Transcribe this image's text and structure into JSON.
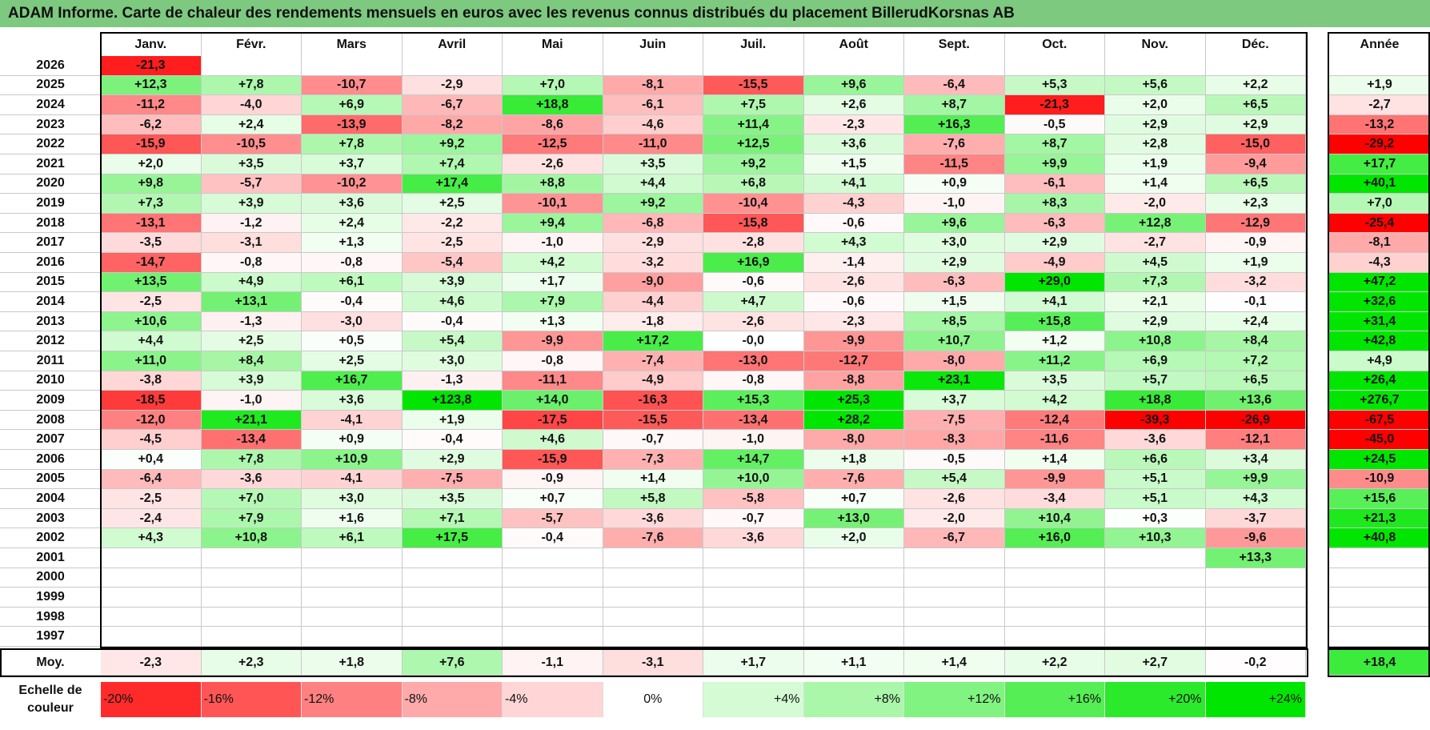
{
  "title": "ADAM Informe. Carte de chaleur des rendements mensuels en euros avec les revenus connus distribués du placement BillerudKorsnas AB",
  "months": [
    "Janv.",
    "Févr.",
    "Mars",
    "Avril",
    "Mai",
    "Juin",
    "Juil.",
    "Août",
    "Sept.",
    "Oct.",
    "Nov.",
    "Déc."
  ],
  "year_header": "Année",
  "avg_label": "Moy.",
  "scale_label_line1": "Echelle de",
  "scale_label_line2": "couleur",
  "colors": {
    "title_bg": "#7dc97f",
    "negative": "#ff0000",
    "positive": "#00e600",
    "neutral": "#ffffff"
  },
  "chart_data": {
    "type": "heatmap",
    "title": "ADAM Informe. Carte de chaleur des rendements mensuels en euros avec les revenus connus distribués du placement BillerudKorsnas AB",
    "unit": "%",
    "rows": [
      {
        "year": "2026",
        "months": [
          "-21,3",
          "",
          "",
          "",
          "",
          "",
          "",
          "",
          "",
          "",
          "",
          ""
        ],
        "annual": ""
      },
      {
        "year": "2025",
        "months": [
          "+12,3",
          "+7,8",
          "-10,7",
          "-2,9",
          "+7,0",
          "-8,1",
          "-15,5",
          "+9,6",
          "-6,4",
          "+5,3",
          "+5,6",
          "+2,2"
        ],
        "annual": "+1,9"
      },
      {
        "year": "2024",
        "months": [
          "-11,2",
          "-4,0",
          "+6,9",
          "-6,7",
          "+18,8",
          "-6,1",
          "+7,5",
          "+2,6",
          "+8,7",
          "-21,3",
          "+2,0",
          "+6,5"
        ],
        "annual": "-2,7"
      },
      {
        "year": "2023",
        "months": [
          "-6,2",
          "+2,4",
          "-13,9",
          "-8,2",
          "-8,6",
          "-4,6",
          "+11,4",
          "-2,3",
          "+16,3",
          "-0,5",
          "+2,9",
          "+2,9"
        ],
        "annual": "-13,2"
      },
      {
        "year": "2022",
        "months": [
          "-15,9",
          "-10,5",
          "+7,8",
          "+9,2",
          "-12,5",
          "-11,0",
          "+12,5",
          "+3,6",
          "-7,6",
          "+8,7",
          "+2,8",
          "-15,0"
        ],
        "annual": "-29,2"
      },
      {
        "year": "2021",
        "months": [
          "+2,0",
          "+3,5",
          "+3,7",
          "+7,4",
          "-2,6",
          "+3,5",
          "+9,2",
          "+1,5",
          "-11,5",
          "+9,9",
          "+1,9",
          "-9,4"
        ],
        "annual": "+17,7"
      },
      {
        "year": "2020",
        "months": [
          "+9,8",
          "-5,7",
          "-10,2",
          "+17,4",
          "+8,8",
          "+4,4",
          "+6,8",
          "+4,1",
          "+0,9",
          "-6,1",
          "+1,4",
          "+6,5"
        ],
        "annual": "+40,1"
      },
      {
        "year": "2019",
        "months": [
          "+7,3",
          "+3,9",
          "+3,6",
          "+2,5",
          "-10,1",
          "+9,2",
          "-10,4",
          "-4,3",
          "-1,0",
          "+8,3",
          "-2,0",
          "+2,3"
        ],
        "annual": "+7,0"
      },
      {
        "year": "2018",
        "months": [
          "-13,1",
          "-1,2",
          "+2,4",
          "-2,2",
          "+9,4",
          "-6,8",
          "-15,8",
          "-0,6",
          "+9,6",
          "-6,3",
          "+12,8",
          "-12,9"
        ],
        "annual": "-25,4"
      },
      {
        "year": "2017",
        "months": [
          "-3,5",
          "-3,1",
          "+1,3",
          "-2,5",
          "-1,0",
          "-2,9",
          "-2,8",
          "+4,3",
          "+3,0",
          "+2,9",
          "-2,7",
          "-0,9"
        ],
        "annual": "-8,1"
      },
      {
        "year": "2016",
        "months": [
          "-14,7",
          "-0,8",
          "-0,8",
          "-5,4",
          "+4,2",
          "-3,2",
          "+16,9",
          "-1,4",
          "+2,9",
          "-4,9",
          "+4,5",
          "+1,9"
        ],
        "annual": "-4,3"
      },
      {
        "year": "2015",
        "months": [
          "+13,5",
          "+4,9",
          "+6,1",
          "+3,9",
          "+1,7",
          "-9,0",
          "-0,6",
          "-2,6",
          "-6,3",
          "+29,0",
          "+7,3",
          "-3,2"
        ],
        "annual": "+47,2"
      },
      {
        "year": "2014",
        "months": [
          "-2,5",
          "+13,1",
          "-0,4",
          "+4,6",
          "+7,9",
          "-4,4",
          "+4,7",
          "-0,6",
          "+1,5",
          "+4,1",
          "+2,1",
          "-0,1"
        ],
        "annual": "+32,6"
      },
      {
        "year": "2013",
        "months": [
          "+10,6",
          "-1,3",
          "-3,0",
          "-0,4",
          "+1,3",
          "-1,8",
          "-2,6",
          "-2,3",
          "+8,5",
          "+15,8",
          "+2,9",
          "+2,4"
        ],
        "annual": "+31,4"
      },
      {
        "year": "2012",
        "months": [
          "+4,4",
          "+2,5",
          "+0,5",
          "+5,4",
          "-9,9",
          "+17,2",
          "-0,0",
          "-9,9",
          "+10,7",
          "+1,2",
          "+10,8",
          "+8,4"
        ],
        "annual": "+42,8"
      },
      {
        "year": "2011",
        "months": [
          "+11,0",
          "+8,4",
          "+2,5",
          "+3,0",
          "-0,8",
          "-7,4",
          "-13,0",
          "-12,7",
          "-8,0",
          "+11,2",
          "+6,9",
          "+7,2"
        ],
        "annual": "+4,9"
      },
      {
        "year": "2010",
        "months": [
          "-3,8",
          "+3,9",
          "+16,7",
          "-1,3",
          "-11,1",
          "-4,9",
          "-0,8",
          "-8,8",
          "+23,1",
          "+3,5",
          "+5,7",
          "+6,5"
        ],
        "annual": "+26,4"
      },
      {
        "year": "2009",
        "months": [
          "-18,5",
          "-1,0",
          "+3,6",
          "+123,8",
          "+14,0",
          "-16,3",
          "+15,3",
          "+25,3",
          "+3,7",
          "+4,2",
          "+18,8",
          "+13,6"
        ],
        "annual": "+276,7"
      },
      {
        "year": "2008",
        "months": [
          "-12,0",
          "+21,1",
          "-4,1",
          "+1,9",
          "-17,5",
          "-15,5",
          "-13,4",
          "+28,2",
          "-7,5",
          "-12,4",
          "-39,3",
          "-26,9"
        ],
        "annual": "-67,5"
      },
      {
        "year": "2007",
        "months": [
          "-4,5",
          "-13,4",
          "+0,9",
          "-0,4",
          "+4,6",
          "-0,7",
          "-1,0",
          "-8,0",
          "-8,3",
          "-11,6",
          "-3,6",
          "-12,1"
        ],
        "annual": "-45,0"
      },
      {
        "year": "2006",
        "months": [
          "+0,4",
          "+7,8",
          "+10,9",
          "+2,9",
          "-15,9",
          "-7,3",
          "+14,7",
          "+1,8",
          "-0,5",
          "+1,4",
          "+6,6",
          "+3,4"
        ],
        "annual": "+24,5"
      },
      {
        "year": "2005",
        "months": [
          "-6,4",
          "-3,6",
          "-4,1",
          "-7,5",
          "-0,9",
          "+1,4",
          "+10,0",
          "-7,6",
          "+5,4",
          "-9,9",
          "+5,1",
          "+9,9"
        ],
        "annual": "-10,9"
      },
      {
        "year": "2004",
        "months": [
          "-2,5",
          "+7,0",
          "+3,0",
          "+3,5",
          "+0,7",
          "+5,8",
          "-5,8",
          "+0,7",
          "-2,6",
          "-3,4",
          "+5,1",
          "+4,3"
        ],
        "annual": "+15,6"
      },
      {
        "year": "2003",
        "months": [
          "-2,4",
          "+7,9",
          "+1,6",
          "+7,1",
          "-5,7",
          "-3,6",
          "-0,7",
          "+13,0",
          "-2,0",
          "+10,4",
          "+0,3",
          "-3,7"
        ],
        "annual": "+21,3"
      },
      {
        "year": "2002",
        "months": [
          "+4,3",
          "+10,8",
          "+6,1",
          "+17,5",
          "-0,4",
          "-7,6",
          "-3,6",
          "+2,0",
          "-6,7",
          "+16,0",
          "+10,3",
          "-9,6"
        ],
        "annual": "+40,8"
      },
      {
        "year": "2001",
        "months": [
          "",
          "",
          "",
          "",
          "",
          "",
          "",
          "",
          "",
          "",
          "",
          "+13,3"
        ],
        "annual": ""
      },
      {
        "year": "2000",
        "months": [
          "",
          "",
          "",
          "",
          "",
          "",
          "",
          "",
          "",
          "",
          "",
          ""
        ],
        "annual": ""
      },
      {
        "year": "1999",
        "months": [
          "",
          "",
          "",
          "",
          "",
          "",
          "",
          "",
          "",
          "",
          "",
          ""
        ],
        "annual": ""
      },
      {
        "year": "1998",
        "months": [
          "",
          "",
          "",
          "",
          "",
          "",
          "",
          "",
          "",
          "",
          "",
          ""
        ],
        "annual": ""
      },
      {
        "year": "1997",
        "months": [
          "",
          "",
          "",
          "",
          "",
          "",
          "",
          "",
          "",
          "",
          "",
          ""
        ],
        "annual": ""
      }
    ],
    "averages": {
      "months": [
        "-2,3",
        "+2,3",
        "+1,8",
        "+7,6",
        "-1,1",
        "-3,1",
        "+1,7",
        "+1,1",
        "+1,4",
        "+2,2",
        "+2,7",
        "-0,2"
      ],
      "annual": "+18,4"
    },
    "color_scale": [
      "-20%",
      "-16%",
      "-12%",
      "-8%",
      "-4%",
      "0%",
      "+4%",
      "+8%",
      "+12%",
      "+16%",
      "+20%",
      "+24%"
    ]
  }
}
